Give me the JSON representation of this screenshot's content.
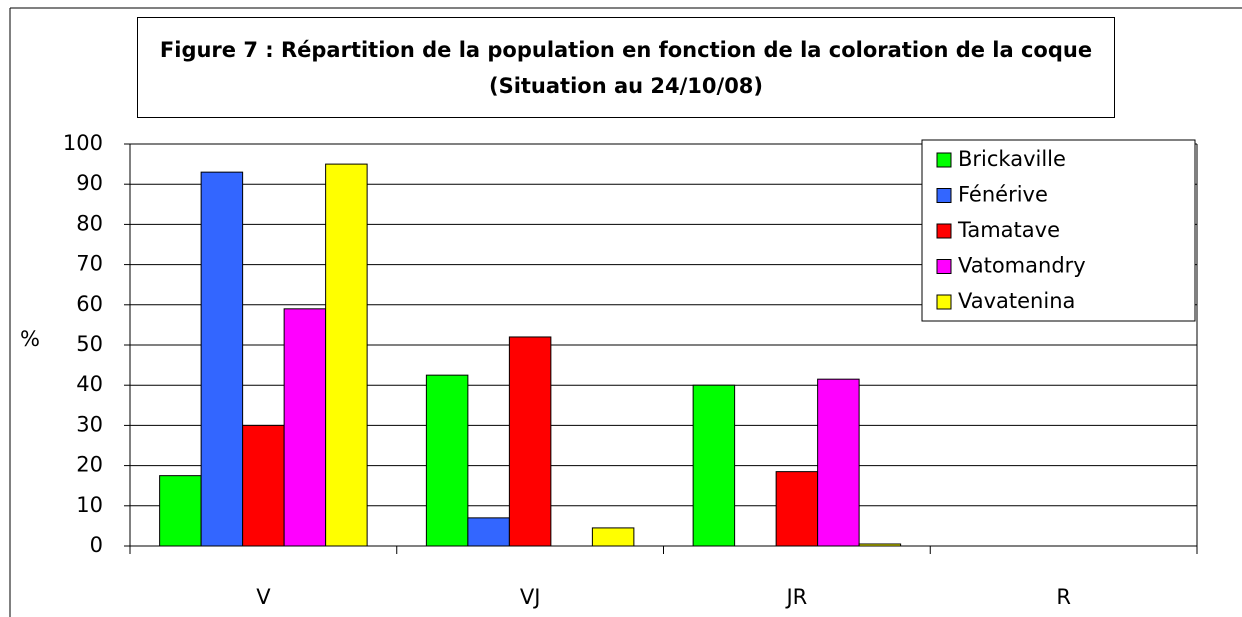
{
  "chart_data": {
    "type": "bar",
    "title": "Figure 7 : Répartition de la population en fonction de la coloration de la coque (Situation au 24/10/08)",
    "ylabel": "%",
    "categories": [
      "V",
      "VJ",
      "JR",
      "R"
    ],
    "series": [
      {
        "name": "Brickaville",
        "color": "#00ff00",
        "values": [
          17.5,
          42.5,
          40,
          0
        ]
      },
      {
        "name": "Fénérive",
        "color": "#3366ff",
        "values": [
          93,
          7,
          0,
          0
        ]
      },
      {
        "name": "Tamatave",
        "color": "#ff0000",
        "values": [
          30,
          52,
          18.5,
          0
        ]
      },
      {
        "name": "Vatomandry",
        "color": "#ff00ff",
        "values": [
          59,
          0,
          41.5,
          0
        ]
      },
      {
        "name": "Vavatenina",
        "color": "#ffff00",
        "values": [
          95,
          4.5,
          0.5,
          0
        ]
      }
    ],
    "ylim": [
      0,
      100
    ],
    "yticks": [
      0,
      10,
      20,
      30,
      40,
      50,
      60,
      70,
      80,
      90,
      100
    ],
    "grid": true,
    "legend": "upper right"
  }
}
